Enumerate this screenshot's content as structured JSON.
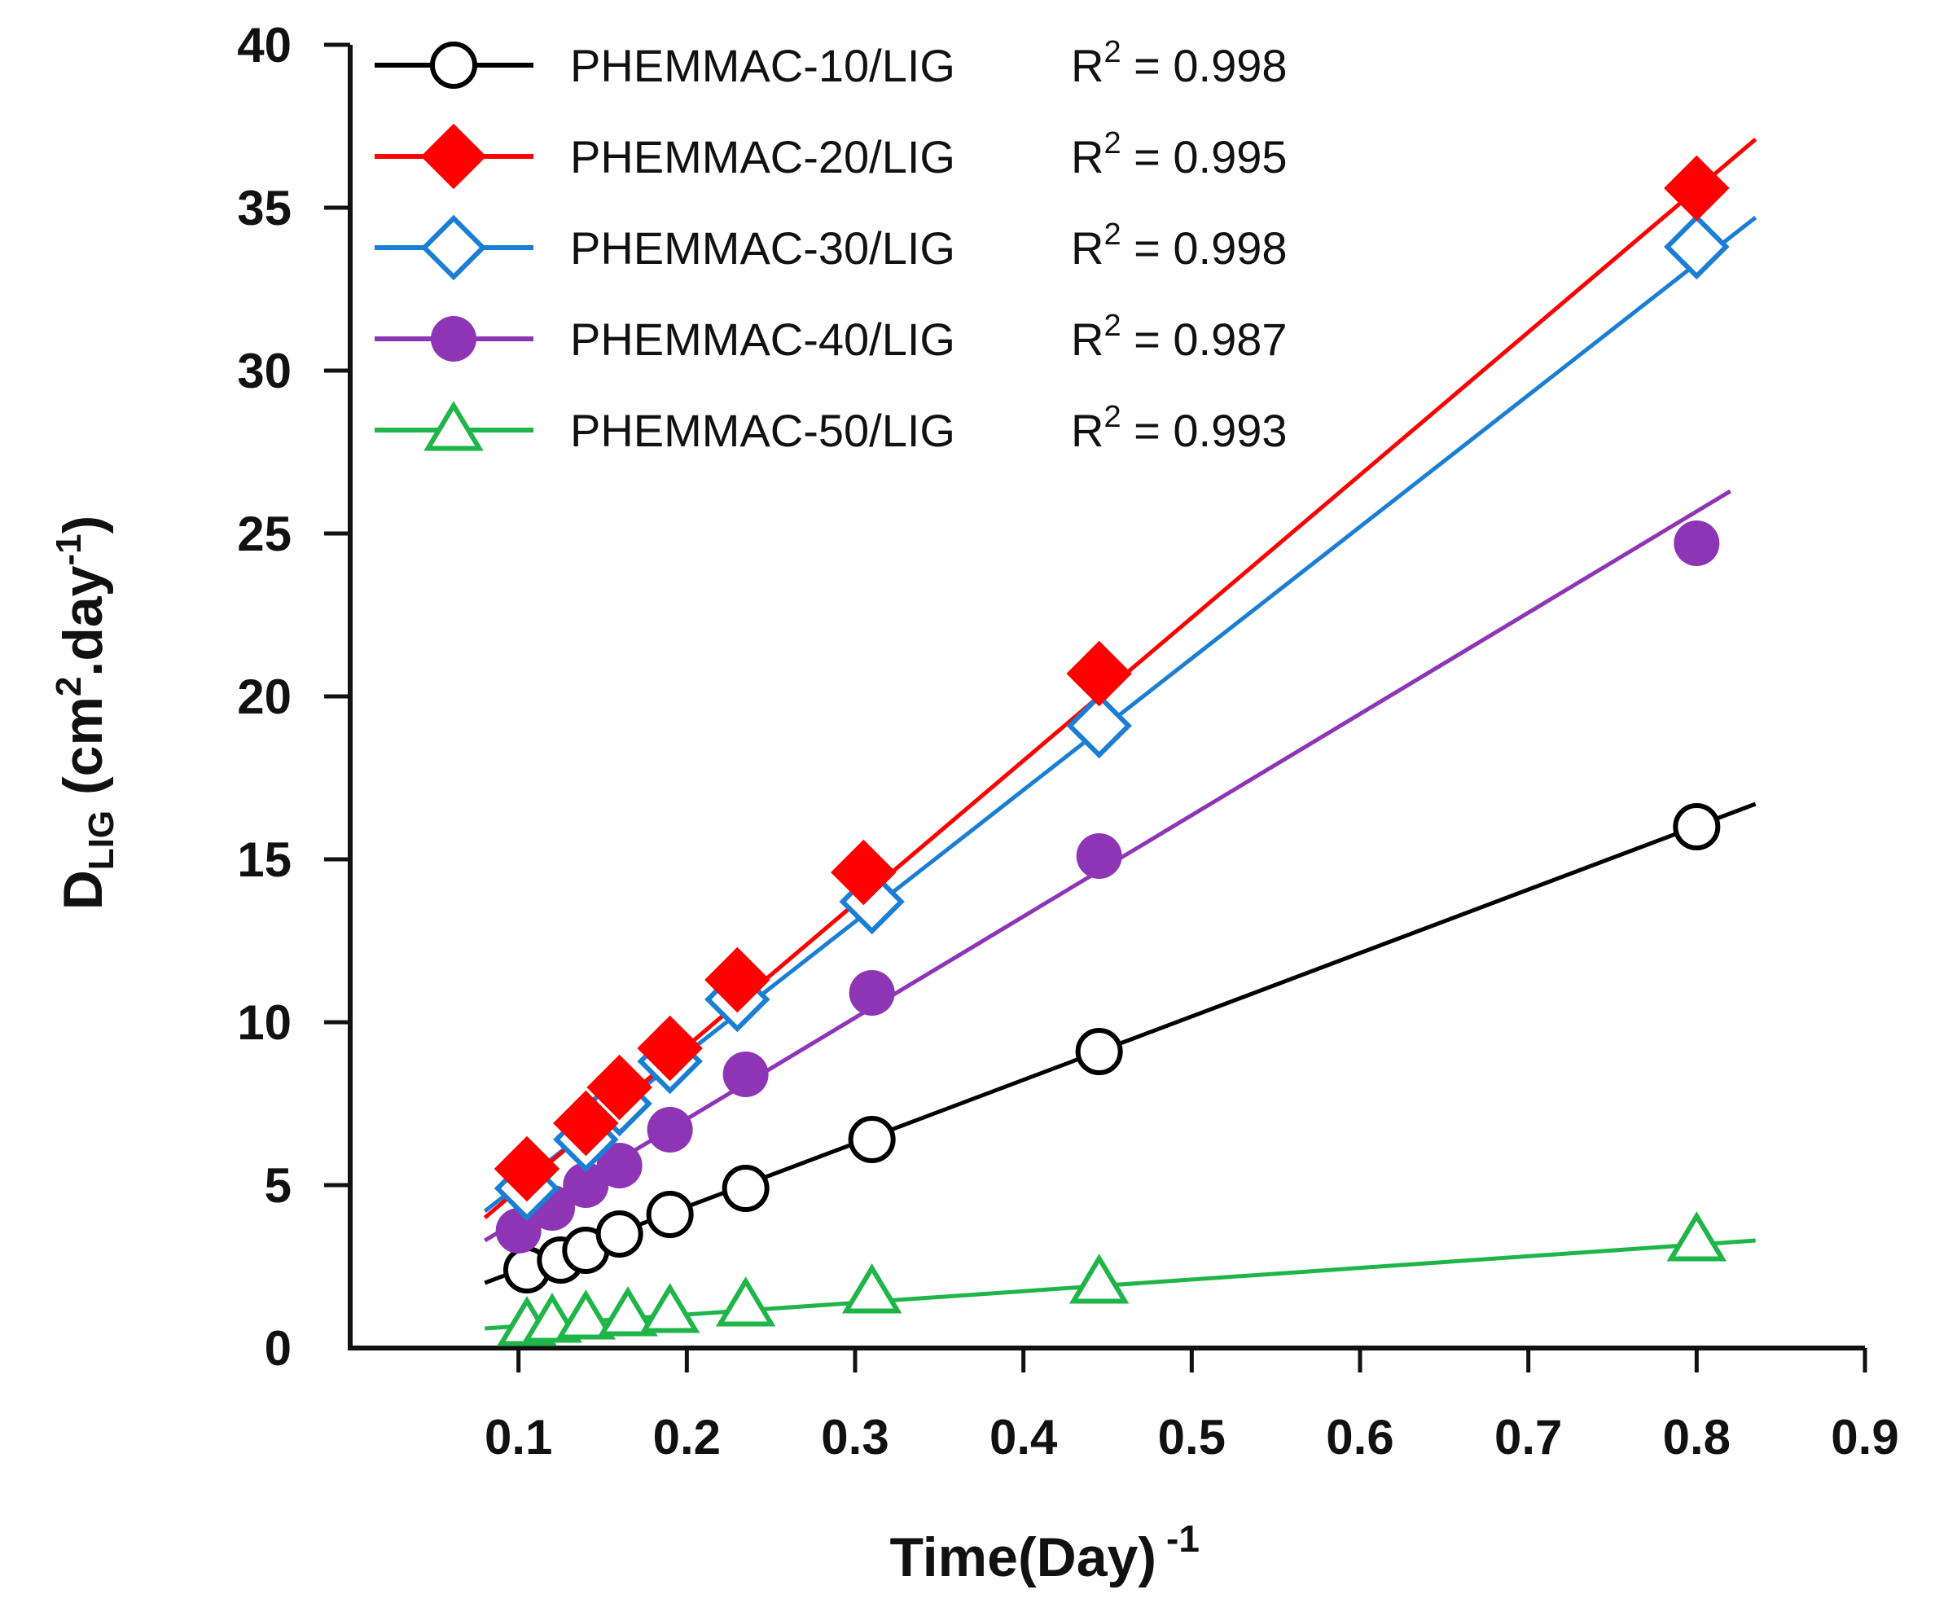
{
  "chart_data": {
    "type": "scatter",
    "title": "",
    "xlabel": "Time(Day)",
    "xlabel_sup": "-1",
    "ylabel_main": "D",
    "ylabel_sub": "LIG",
    "ylabel_unit_a": " (cm",
    "ylabel_unit_sup1": "2",
    "ylabel_unit_b": ".day",
    "ylabel_unit_sup2": "-1",
    "ylabel_unit_c": ")",
    "xlim": [
      0,
      0.9
    ],
    "ylim": [
      0,
      40
    ],
    "xticks": [
      "0.1",
      "0.2",
      "0.3",
      "0.4",
      "0.5",
      "0.6",
      "0.7",
      "0.8",
      "0.9"
    ],
    "yticks": [
      "0",
      "5",
      "10",
      "15",
      "20",
      "25",
      "30",
      "35",
      "40"
    ],
    "grid": false,
    "legend_position": "top-left",
    "series": [
      {
        "name": "PHEMMAC-10/LIG",
        "r2_label": "R",
        "r2_sup": "2",
        "r2_value": " = 0.998",
        "color": "#000000",
        "marker": "circle-open",
        "x": [
          0.105,
          0.125,
          0.14,
          0.16,
          0.19,
          0.235,
          0.31,
          0.445,
          0.8
        ],
        "y": [
          2.4,
          2.7,
          3.0,
          3.5,
          4.1,
          4.9,
          6.4,
          9.1,
          16.0
        ],
        "fit": {
          "x": [
            0.08,
            0.835
          ],
          "y": [
            2.0,
            16.7
          ]
        }
      },
      {
        "name": "PHEMMAC-20/LIG",
        "r2_label": "R",
        "r2_sup": "2",
        "r2_value": " = 0.995",
        "color": "#ff0000",
        "marker": "diamond-filled",
        "x": [
          0.105,
          0.14,
          0.16,
          0.19,
          0.23,
          0.305,
          0.445,
          0.8
        ],
        "y": [
          5.5,
          6.9,
          8.0,
          9.2,
          11.3,
          14.6,
          20.7,
          35.6
        ],
        "fit": {
          "x": [
            0.08,
            0.835
          ],
          "y": [
            4.0,
            37.1
          ]
        }
      },
      {
        "name": "PHEMMAC-30/LIG",
        "r2_label": "R",
        "r2_sup": "2",
        "r2_value": " = 0.998",
        "color": "#1a7fd4",
        "marker": "diamond-open",
        "x": [
          0.105,
          0.14,
          0.16,
          0.19,
          0.23,
          0.31,
          0.445,
          0.8
        ],
        "y": [
          4.9,
          6.4,
          7.5,
          8.8,
          10.7,
          13.7,
          19.1,
          33.8
        ],
        "fit": {
          "x": [
            0.08,
            0.835
          ],
          "y": [
            4.2,
            34.7
          ]
        }
      },
      {
        "name": "PHEMMAC-40/LIG",
        "r2_label": "R",
        "r2_sup": "2",
        "r2_value": " = 0.987",
        "color": "#8e35b6",
        "marker": "circle-filled",
        "x": [
          0.1,
          0.12,
          0.14,
          0.16,
          0.19,
          0.235,
          0.31,
          0.445,
          0.8
        ],
        "y": [
          3.6,
          4.3,
          5.0,
          5.6,
          6.7,
          8.4,
          10.9,
          15.1,
          24.7
        ],
        "fit": {
          "x": [
            0.08,
            0.82
          ],
          "y": [
            3.3,
            26.3
          ]
        }
      },
      {
        "name": "PHEMMAC-50/LIG",
        "r2_label": "R",
        "r2_sup": "2",
        "r2_value": " = 0.993",
        "color": "#1fb548",
        "marker": "triangle-open",
        "x": [
          0.105,
          0.12,
          0.14,
          0.165,
          0.19,
          0.235,
          0.31,
          0.445,
          0.8
        ],
        "y": [
          0.7,
          0.8,
          0.9,
          1.0,
          1.1,
          1.3,
          1.7,
          2.0,
          3.3
        ],
        "fit": {
          "x": [
            0.08,
            0.835
          ],
          "y": [
            0.6,
            3.3
          ]
        }
      }
    ]
  }
}
